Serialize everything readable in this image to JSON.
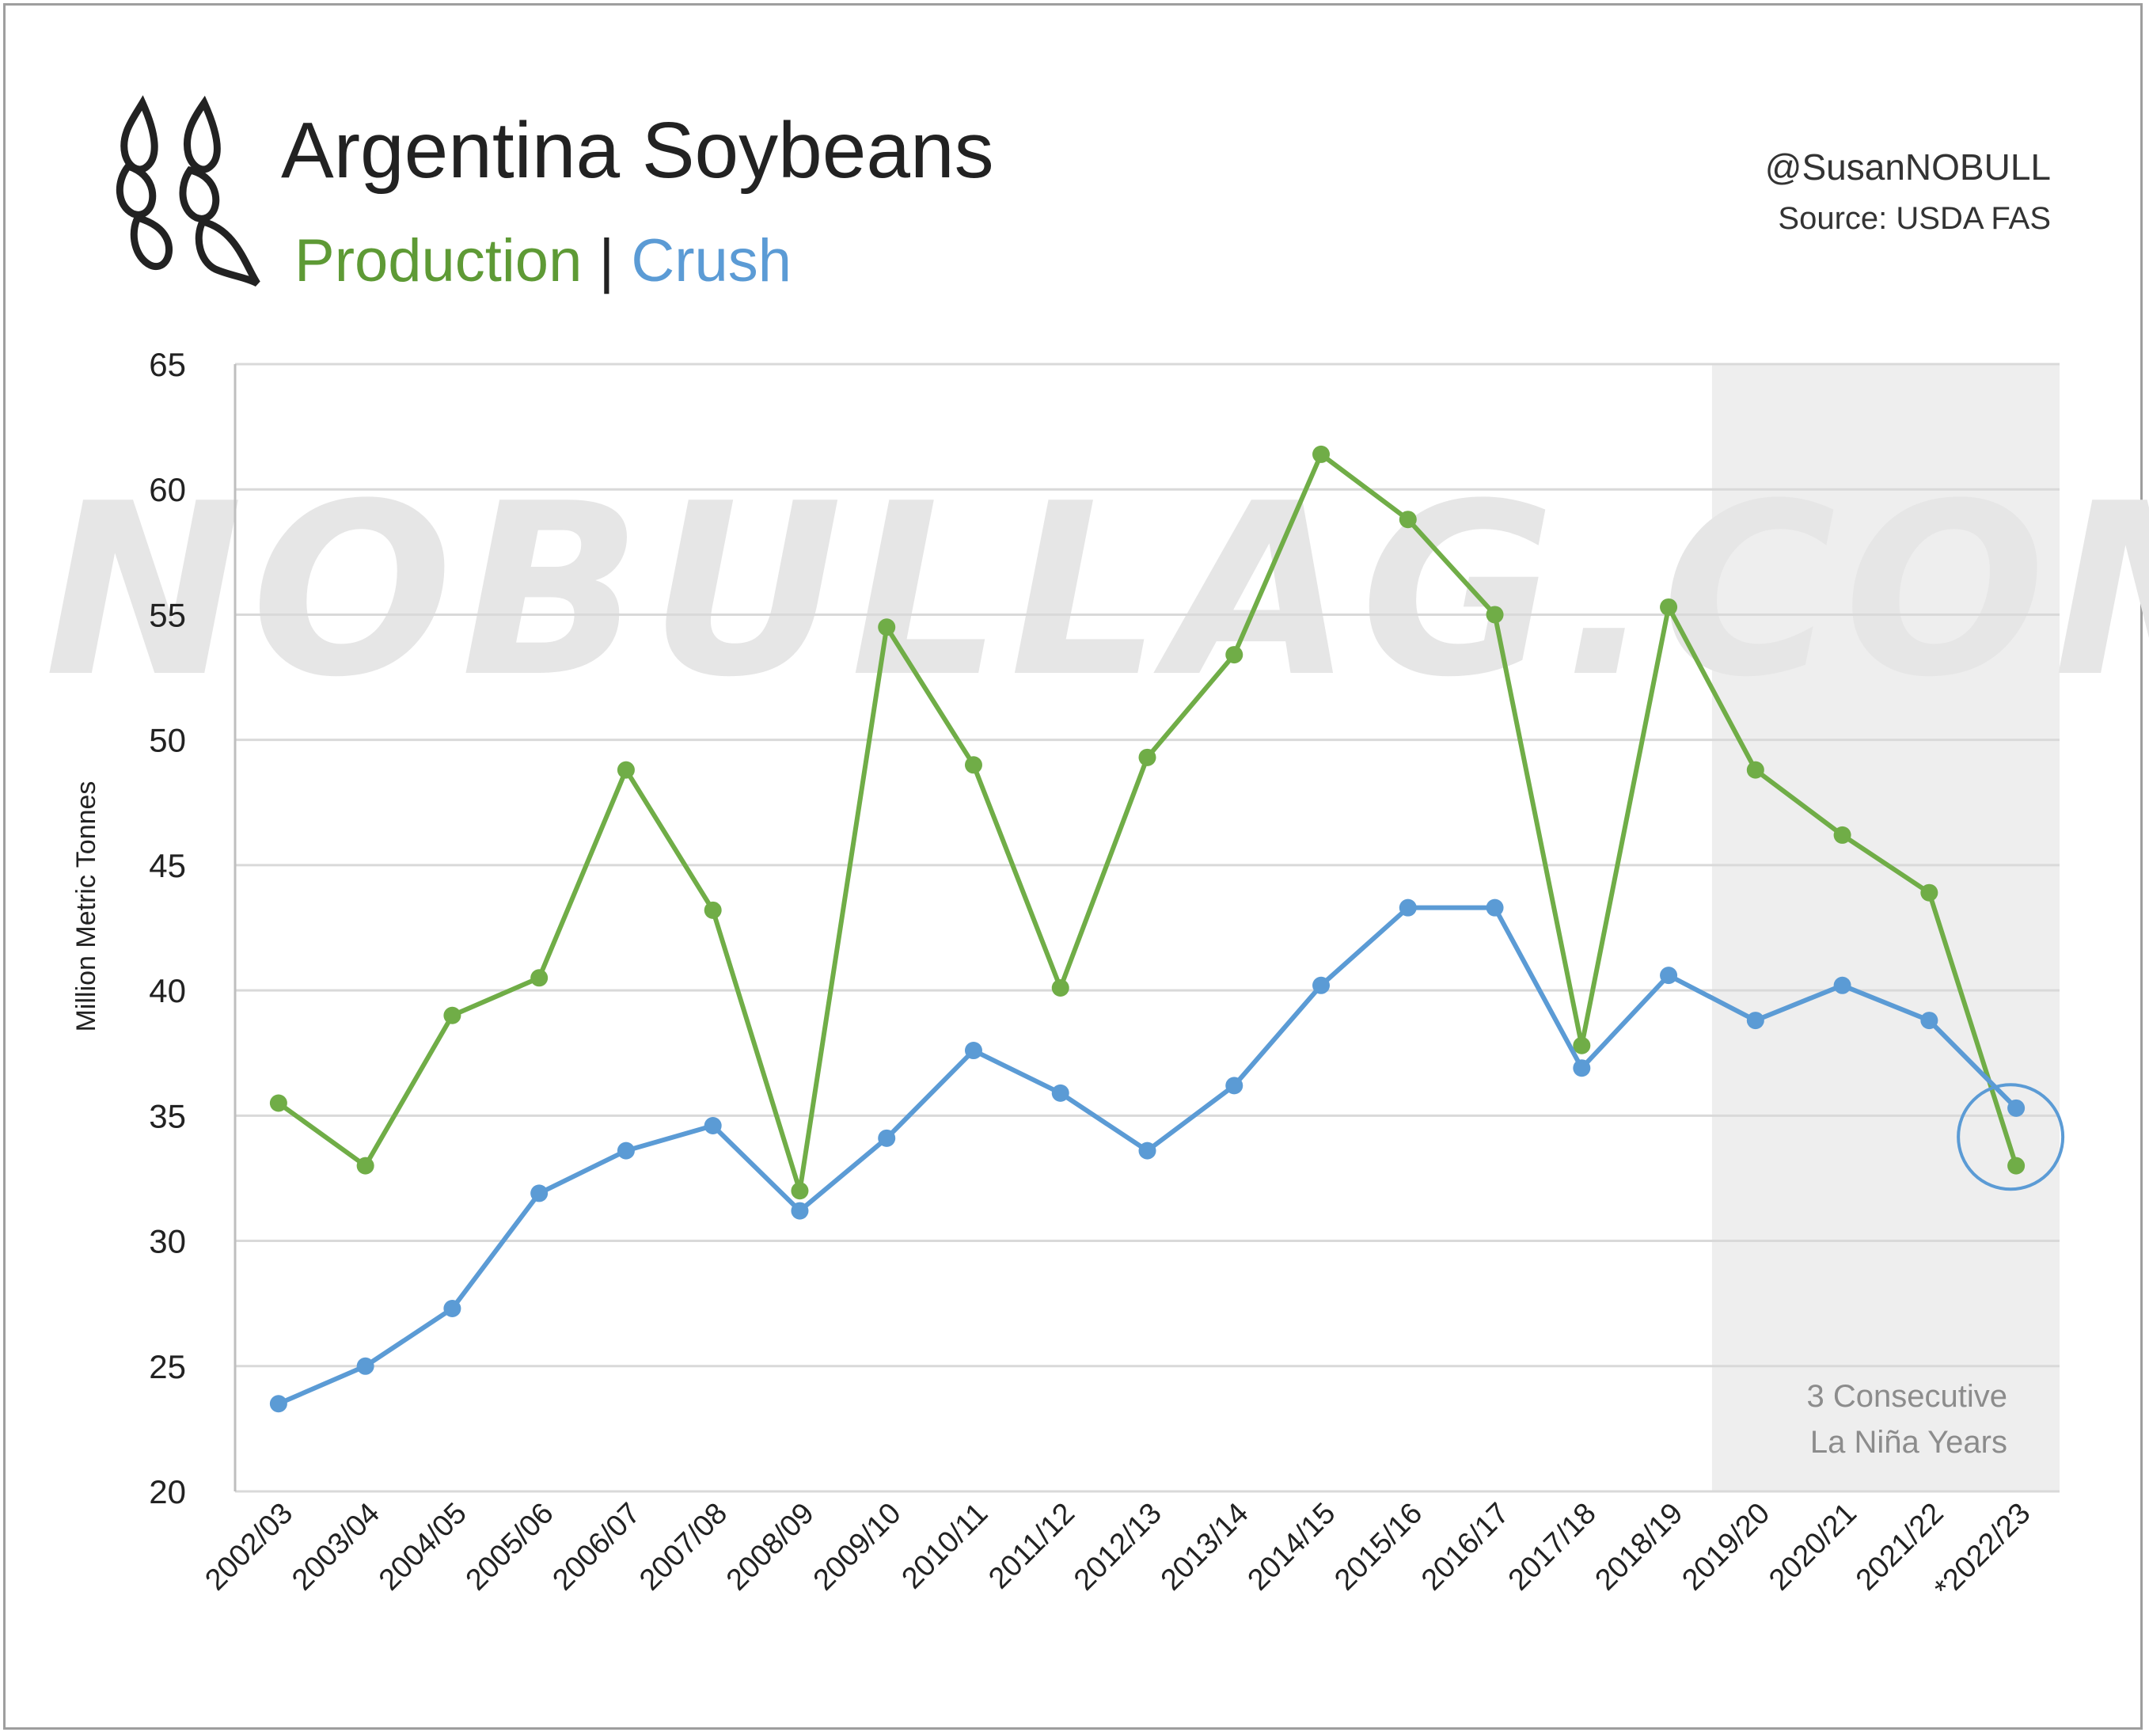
{
  "header": {
    "title": "Argentina Soybeans",
    "subtitle_production": "Production",
    "subtitle_separator": "|",
    "subtitle_crush": "Crush",
    "handle": "@SusanNOBULL",
    "source": "Source: USDA FAS",
    "logo_icon": "soybean-pods-icon"
  },
  "watermark": "NOBULLAG.COM",
  "colors": {
    "production": "#70ad47",
    "crush": "#5b9bd5",
    "production_title": "#5e9a35",
    "shade": "#eeeeee",
    "grid": "#d9d9d9"
  },
  "chart_data": {
    "type": "line",
    "ylabel": "Million Metric Tonnes",
    "xlabel": "",
    "ylim": [
      20,
      65
    ],
    "yticks": [
      20,
      25,
      30,
      35,
      40,
      45,
      50,
      55,
      60,
      65
    ],
    "grid": true,
    "categories": [
      "2002/03",
      "2003/04",
      "2004/05",
      "2005/06",
      "2006/07",
      "2007/08",
      "2008/09",
      "2009/10",
      "2010/11",
      "2011/12",
      "2012/13",
      "2013/14",
      "2014/15",
      "2015/16",
      "2016/17",
      "2017/18",
      "2018/19",
      "2019/20",
      "2020/21",
      "2021/22",
      "*2022/23"
    ],
    "series": [
      {
        "name": "Production",
        "color": "#70ad47",
        "values": [
          35.5,
          33.0,
          39.0,
          40.5,
          48.8,
          43.2,
          32.0,
          54.5,
          49.0,
          40.1,
          49.3,
          53.4,
          61.4,
          58.8,
          55.0,
          37.8,
          55.3,
          48.8,
          46.2,
          43.9,
          33.0
        ]
      },
      {
        "name": "Crush",
        "color": "#5b9bd5",
        "values": [
          23.5,
          25.0,
          27.3,
          31.9,
          33.6,
          34.6,
          31.2,
          34.1,
          37.6,
          35.9,
          33.6,
          36.2,
          40.2,
          43.3,
          43.3,
          36.9,
          40.6,
          38.8,
          40.2,
          38.8,
          35.3
        ]
      }
    ],
    "shaded_region": {
      "from_category": "2019/20",
      "to_category": "*2022/23",
      "label_line1": "3 Consecutive",
      "label_line2": "La Niña Years"
    },
    "highlight_circle_category": "*2022/23"
  }
}
